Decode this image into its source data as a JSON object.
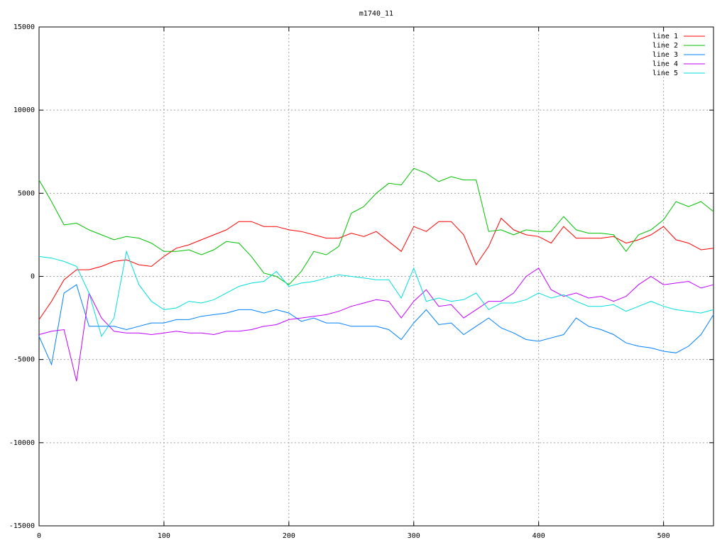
{
  "chart_data": {
    "type": "line",
    "title": "m1740_11",
    "x": [
      0,
      10,
      20,
      30,
      40,
      50,
      60,
      70,
      80,
      90,
      100,
      110,
      120,
      130,
      140,
      150,
      160,
      170,
      180,
      190,
      200,
      210,
      220,
      230,
      240,
      250,
      260,
      270,
      280,
      290,
      300,
      310,
      320,
      330,
      340,
      350,
      360,
      370,
      380,
      390,
      400,
      410,
      420,
      430,
      440,
      450,
      460,
      470,
      480,
      490,
      500,
      510,
      520,
      530,
      540
    ],
    "series": [
      {
        "name": "line 1",
        "color": "#ff0000",
        "values": [
          -2600,
          -1500,
          -200,
          400,
          400,
          600,
          900,
          1000,
          700,
          600,
          1200,
          1700,
          1900,
          2200,
          2500,
          2800,
          3300,
          3300,
          3000,
          3000,
          2800,
          2700,
          2500,
          2300,
          2300,
          2600,
          2400,
          2700,
          2100,
          1500,
          3000,
          2700,
          3300,
          3300,
          2500,
          700,
          1800,
          3500,
          2800,
          2500,
          2400,
          2000,
          3000,
          2300,
          2300,
          2300,
          2400,
          2000,
          2200,
          2500,
          3000,
          2200,
          2000,
          1600,
          1700
        ]
      },
      {
        "name": "line 2",
        "color": "#00c000",
        "values": [
          5800,
          4500,
          3100,
          3200,
          2800,
          2500,
          2200,
          2400,
          2300,
          2000,
          1500,
          1500,
          1600,
          1300,
          1600,
          2100,
          2000,
          1200,
          200,
          0,
          -500,
          300,
          1500,
          1300,
          1800,
          3800,
          4200,
          5000,
          5600,
          5500,
          6500,
          6200,
          5700,
          6000,
          5800,
          5800,
          2700,
          2800,
          2500,
          2800,
          2700,
          2700,
          3600,
          2800,
          2600,
          2600,
          2500,
          1500,
          2500,
          2800,
          3400,
          4500,
          4200,
          4500,
          3900
        ]
      },
      {
        "name": "line 3",
        "color": "#0080ff",
        "values": [
          -3600,
          -5300,
          -1000,
          -500,
          -3000,
          -3000,
          -3000,
          -3200,
          -3000,
          -2800,
          -2800,
          -2600,
          -2600,
          -2400,
          -2300,
          -2200,
          -2000,
          -2000,
          -2200,
          -2000,
          -2200,
          -2700,
          -2500,
          -2800,
          -2800,
          -3000,
          -3000,
          -3000,
          -3200,
          -3800,
          -2800,
          -2000,
          -2900,
          -2800,
          -3500,
          -3000,
          -2500,
          -3100,
          -3400,
          -3800,
          -3900,
          -3700,
          -3500,
          -2500,
          -3000,
          -3200,
          -3500,
          -4000,
          -4200,
          -4300,
          -4500,
          -4600,
          -4200,
          -3500,
          -2300
        ]
      },
      {
        "name": "line 4",
        "color": "#c000ff",
        "values": [
          -3500,
          -3300,
          -3200,
          -6300,
          -1000,
          -2500,
          -3300,
          -3400,
          -3400,
          -3500,
          -3400,
          -3300,
          -3400,
          -3400,
          -3500,
          -3300,
          -3300,
          -3200,
          -3000,
          -2900,
          -2600,
          -2500,
          -2400,
          -2300,
          -2100,
          -1800,
          -1600,
          -1400,
          -1500,
          -2500,
          -1500,
          -800,
          -1800,
          -1700,
          -2500,
          -2000,
          -1500,
          -1500,
          -1000,
          0,
          500,
          -800,
          -1200,
          -1000,
          -1300,
          -1200,
          -1500,
          -1200,
          -500,
          0,
          -500,
          -400,
          -300,
          -700,
          -500
        ]
      },
      {
        "name": "line 5",
        "color": "#00dddd",
        "values": [
          1200,
          1100,
          900,
          600,
          -1000,
          -3600,
          -2500,
          1500,
          -500,
          -1500,
          -2000,
          -1900,
          -1500,
          -1600,
          -1400,
          -1000,
          -600,
          -400,
          -300,
          300,
          -600,
          -400,
          -300,
          -100,
          100,
          0,
          -100,
          -200,
          -200,
          -1300,
          500,
          -1500,
          -1300,
          -1500,
          -1400,
          -1000,
          -2000,
          -1600,
          -1600,
          -1400,
          -1000,
          -1300,
          -1100,
          -1500,
          -1800,
          -1800,
          -1700,
          -2100,
          -1800,
          -1500,
          -1800,
          -2000,
          -2100,
          -2200,
          -2000
        ]
      }
    ],
    "xlim": [
      0,
      540
    ],
    "ylim": [
      -15000,
      15000
    ],
    "xticks": [
      0,
      100,
      200,
      300,
      400,
      500
    ],
    "yticks": [
      -15000,
      -10000,
      -5000,
      0,
      5000,
      10000,
      15000
    ],
    "grid": true,
    "legend": "top-right"
  }
}
